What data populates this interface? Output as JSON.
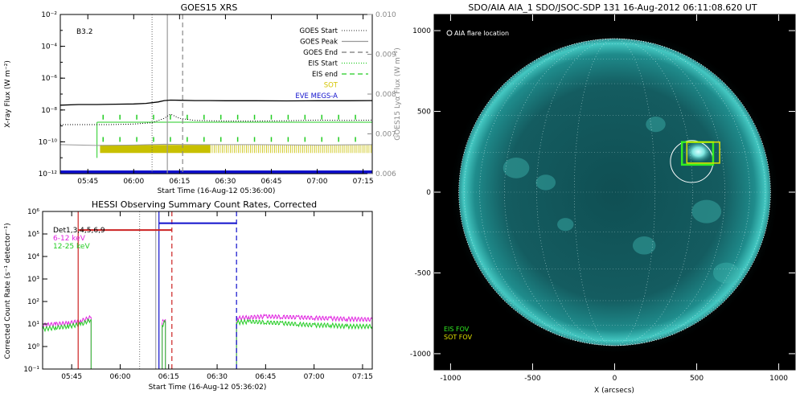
{
  "chart_data": [
    {
      "type": "line",
      "title": "GOES15 XRS",
      "xlabel": "Start Time (16-Aug-12 05:36:00)",
      "ylabel": "X-ray Flux (W m⁻²)",
      "ylabel_right": "GOES15 Lyα Flux (W m⁻²)",
      "ylim": [
        1e-12,
        0.01
      ],
      "ylim_right": [
        0.006,
        0.01
      ],
      "yscale": "log",
      "xlim": [
        "05:36",
        "07:18"
      ],
      "x_ticks": [
        "05:45",
        "06:00",
        "06:15",
        "06:30",
        "06:45",
        "07:00",
        "07:15"
      ],
      "y_ticks": [
        "10⁻¹²",
        "10⁻¹⁰",
        "10⁻⁸",
        "10⁻⁶",
        "10⁻⁴",
        "10⁻²"
      ],
      "y_ticks_right": [
        "0.006",
        "0.007",
        "0.008",
        "0.009",
        "0.010"
      ],
      "flare_class": "B3.2",
      "legend_placement": "top-right",
      "legend": [
        {
          "label": "GOES Start",
          "style": "dotted",
          "color": "#555555"
        },
        {
          "label": "GOES Peak",
          "style": "solid",
          "color": "#999999"
        },
        {
          "label": "GOES End",
          "style": "dashed",
          "color": "#777777"
        },
        {
          "label": "EIS Start",
          "style": "dotted",
          "color": "#22cc22"
        },
        {
          "label": "EIS end",
          "style": "dashed",
          "color": "#22cc22"
        },
        {
          "label": "SOT",
          "style": "text",
          "color": "#d4c400"
        },
        {
          "label": "EVE MEGS-A",
          "style": "text",
          "color": "#1010cc"
        }
      ],
      "markers": {
        "goes_start": "06:06",
        "goes_peak": "06:11",
        "goes_end": "06:16",
        "eis_start": "05:48",
        "eis_end": "07:17"
      },
      "series": [
        {
          "name": "GOES long channel",
          "color": "#000000",
          "x": [
            "05:36",
            "05:42",
            "05:48",
            "05:54",
            "06:00",
            "06:04",
            "06:08",
            "06:10",
            "06:12",
            "06:15",
            "06:20",
            "06:25",
            "06:30",
            "06:40",
            "06:50",
            "07:00",
            "07:10",
            "07:18"
          ],
          "values": [
            2e-08,
            2.2e-08,
            2.2e-08,
            2.3e-08,
            2.4e-08,
            2.6e-08,
            3.2e-08,
            3.9e-08,
            4.2e-08,
            4.1e-08,
            3.9e-08,
            3.9e-08,
            3.8e-08,
            3.8e-08,
            3.7e-08,
            3.8e-08,
            3.8e-08,
            3.9e-08
          ]
        },
        {
          "name": "GOES short channel",
          "color": "#000000",
          "style": "dotted",
          "x": [
            "05:36",
            "05:44",
            "05:52",
            "06:00",
            "06:06",
            "06:10",
            "06:12",
            "06:15",
            "06:20",
            "06:30",
            "06:40",
            "06:50",
            "07:00",
            "07:10",
            "07:18"
          ],
          "values": [
            1.2e-09,
            1.2e-09,
            1.2e-09,
            1.3e-09,
            1.6e-09,
            3e-09,
            5.5e-09,
            3e-09,
            2.2e-09,
            2e-09,
            2e-09,
            2.1e-09,
            2.3e-09,
            2.2e-09,
            2.3e-09
          ]
        },
        {
          "name": "GOES15 Lyα",
          "color": "#999999",
          "x": [
            "05:36",
            "05:48",
            "06:00",
            "06:10",
            "06:20",
            "06:40",
            "07:00",
            "07:18"
          ],
          "values": [
            0.00673,
            0.00671,
            0.00672,
            0.00674,
            0.00673,
            0.00673,
            0.00672,
            0.00673
          ]
        }
      ],
      "coverage_bars": [
        {
          "name": "SOT",
          "color": "#c8c000",
          "start": "05:49",
          "end": "06:25",
          "style": "solid"
        },
        {
          "name": "SOT",
          "color": "#c8c000",
          "start": "06:25",
          "end": "07:18",
          "style": "hatched"
        },
        {
          "name": "EVE MEGS-A",
          "color": "#1010cc",
          "start": "05:36",
          "end": "07:18",
          "style": "solid"
        }
      ]
    },
    {
      "type": "line",
      "title": "HESSI Observing Summary Count Rates, Corrected",
      "xlabel": "Start Time (16-Aug-12 05:36:02)",
      "ylabel": "Corrected Count Rate (s⁻¹ detector⁻¹)",
      "yscale": "log",
      "ylim": [
        0.1,
        1000000.0
      ],
      "xlim": [
        "05:36",
        "07:18"
      ],
      "x_ticks": [
        "05:45",
        "06:00",
        "06:15",
        "06:30",
        "06:45",
        "07:00",
        "07:15"
      ],
      "y_ticks": [
        "10⁻¹",
        "10⁰",
        "10¹",
        "10²",
        "10³",
        "10⁴",
        "10⁵",
        "10⁶"
      ],
      "legend_placement": "top-left",
      "legend_text": [
        {
          "label": "Det1,3,4,5,6,9",
          "color": "#000000"
        },
        {
          "label": "6-12 keV",
          "color": "#e020e0"
        },
        {
          "label": "12-25 keV",
          "color": "#22cc22"
        }
      ],
      "series": [
        {
          "name": "6-12 keV",
          "color": "#e020e0",
          "segments": [
            {
              "x": [
                "05:36",
                "05:40",
                "05:44",
                "05:48",
                "05:51"
              ],
              "values": [
                9,
                10,
                11,
                14,
                20
              ]
            },
            {
              "x": [
                "06:13",
                "06:14"
              ],
              "values": [
                12,
                16
              ]
            },
            {
              "x": [
                "06:36",
                "06:40",
                "06:45",
                "06:50",
                "06:55",
                "07:00",
                "07:05",
                "07:10",
                "07:18"
              ],
              "values": [
                18,
                20,
                22,
                21,
                20,
                19,
                18,
                17,
                16
              ]
            }
          ]
        },
        {
          "name": "12-25 keV",
          "color": "#22cc22",
          "segments": [
            {
              "x": [
                "05:36",
                "05:40",
                "05:44",
                "05:48",
                "05:51"
              ],
              "values": [
                6,
                7,
                8,
                10,
                16
              ]
            },
            {
              "x": [
                "06:13",
                "06:14"
              ],
              "values": [
                9,
                13
              ]
            },
            {
              "x": [
                "06:36",
                "06:40",
                "06:45",
                "06:50",
                "06:55",
                "07:00",
                "07:05",
                "07:10",
                "07:18"
              ],
              "values": [
                12,
                13,
                12,
                11,
                10,
                9,
                9,
                8,
                8
              ]
            }
          ]
        }
      ],
      "vertical_lines": [
        {
          "x": "05:47",
          "color": "#cc2222",
          "style": "solid"
        },
        {
          "x": "06:16",
          "color": "#cc2222",
          "style": "dashed"
        },
        {
          "x": "06:12",
          "color": "#1010cc",
          "style": "solid"
        },
        {
          "x": "06:36",
          "color": "#1010cc",
          "style": "dashed"
        },
        {
          "x": "06:06",
          "color": "#888888",
          "style": "dotted"
        },
        {
          "x": "06:11",
          "color": "#aaaaaa",
          "style": "solid"
        }
      ],
      "horizontal_bars": [
        {
          "color": "#cc2222",
          "start": "05:47",
          "end": "06:16",
          "y": 150000
        },
        {
          "color": "#1010cc",
          "start": "06:12",
          "end": "06:36",
          "y": 300000
        }
      ]
    },
    {
      "type": "heatmap",
      "title": "SDO/AIA AIA_1 SDO/JSOC-SDP 131 16-Aug-2012 06:11:08.620 UT",
      "xlabel": "X (arcsecs)",
      "ylabel": "",
      "xlim": [
        -1100,
        1100
      ],
      "ylim": [
        -1100,
        1100
      ],
      "x_ticks": [
        "-1000",
        "-500",
        "0",
        "500",
        "1000"
      ],
      "y_ticks": [
        "-1000",
        "-500",
        "0",
        "500",
        "1000"
      ],
      "legend_top": "AIA flare location",
      "legend_bottom": [
        {
          "label": "EIS FOV",
          "color": "#33ee22"
        },
        {
          "label": "SOT FOV",
          "color": "#e0e000"
        }
      ],
      "disk_radius_arcsec": 950,
      "flare_location": {
        "x": 470,
        "y": 190,
        "radius": 130
      },
      "eis_fov": {
        "x0": 410,
        "x1": 600,
        "y0": 170,
        "y1": 310
      },
      "sot_fov": {
        "x0": 440,
        "x1": 640,
        "y0": 180,
        "y1": 310
      },
      "image_color": "#1f8c8c"
    }
  ]
}
